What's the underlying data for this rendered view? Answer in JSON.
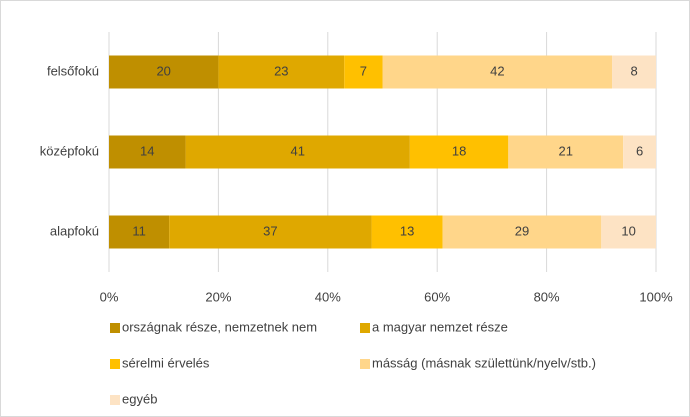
{
  "chart_data": {
    "type": "stacked-bar-horizontal",
    "categories": [
      "felsőfokú",
      "középfokú",
      "alapfokú"
    ],
    "series": [
      {
        "name": "országnak része, nemzetnek nem",
        "color": "#bf8f00",
        "values": [
          20,
          14,
          11
        ]
      },
      {
        "name": "a magyar nemzet része",
        "color": "#dfa800",
        "values": [
          23,
          41,
          37
        ]
      },
      {
        "name": "sérelmi érvelés",
        "color": "#ffc000",
        "values": [
          7,
          18,
          13
        ]
      },
      {
        "name": "másság (másnak születtünk/nyelv/stb.)",
        "color": "#ffd68a",
        "values": [
          42,
          21,
          29
        ]
      },
      {
        "name": "egyéb",
        "color": "#fde3c4",
        "values": [
          8,
          6,
          10
        ]
      }
    ],
    "xlim": [
      0,
      100
    ],
    "xticks": [
      {
        "value": 0,
        "label": "0%"
      },
      {
        "value": 20,
        "label": "20%"
      },
      {
        "value": 40,
        "label": "40%"
      },
      {
        "value": 60,
        "label": "60%"
      },
      {
        "value": 80,
        "label": "80%"
      },
      {
        "value": 100,
        "label": "100%"
      }
    ],
    "grid": true
  }
}
